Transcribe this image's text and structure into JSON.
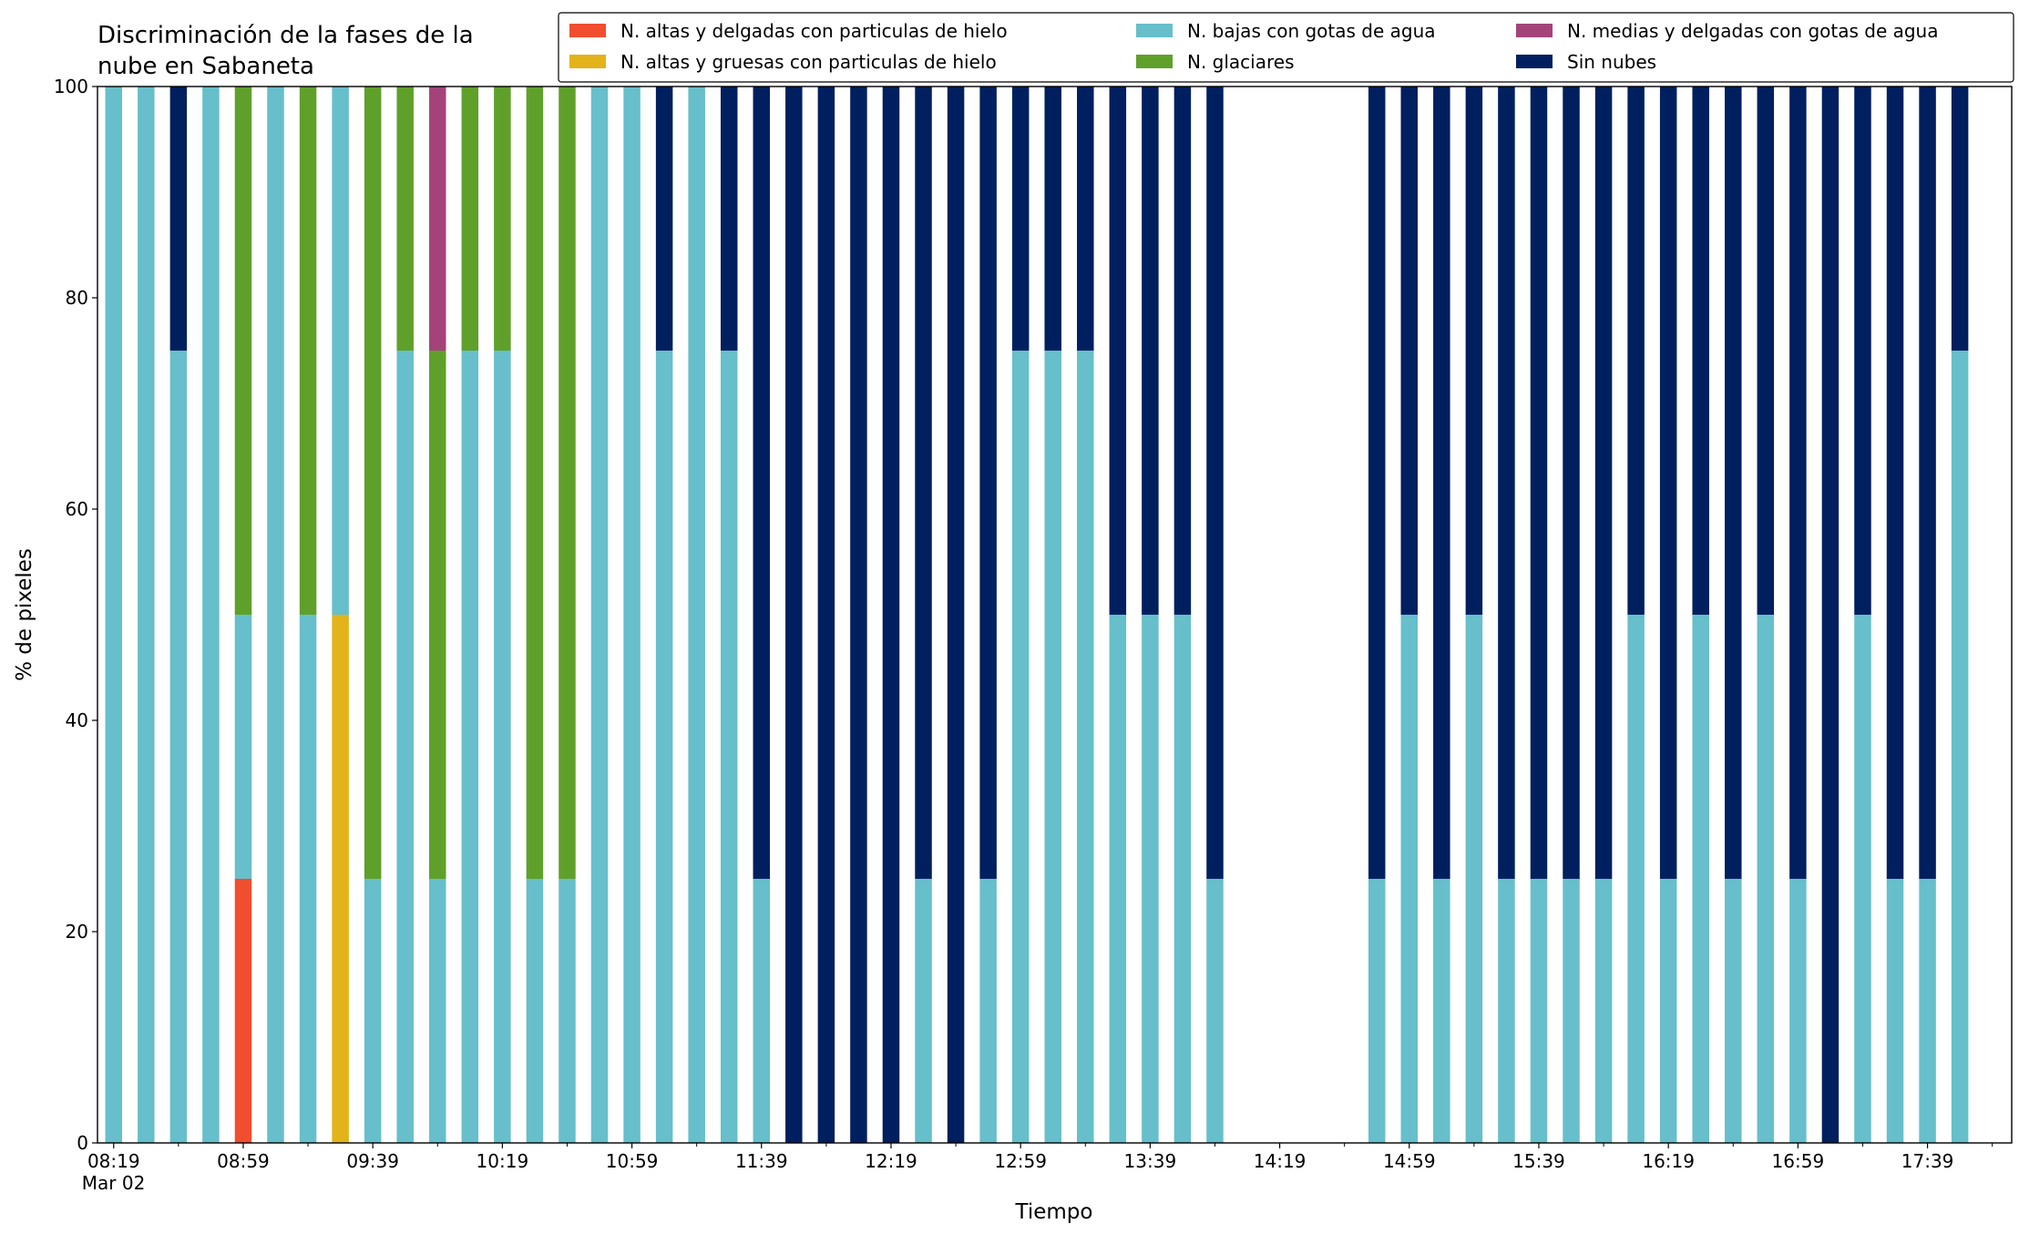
{
  "chart_data": {
    "type": "stacked_bar",
    "title": "Discriminación de la fases de la\nnube en Sabaneta",
    "x_label": "Tiempo",
    "y_label": "% de pixeles",
    "x": [
      "08:19",
      "08:29",
      "08:39",
      "08:49",
      "08:59",
      "09:09",
      "09:19",
      "09:29",
      "09:39",
      "09:49",
      "09:59",
      "10:09",
      "10:19",
      "10:29",
      "10:39",
      "10:49",
      "10:59",
      "11:09",
      "11:19",
      "11:29",
      "11:39",
      "11:49",
      "11:59",
      "12:09",
      "12:19",
      "12:29",
      "12:39",
      "12:49",
      "12:59",
      "13:09",
      "13:19",
      "13:29",
      "13:39",
      "13:49",
      "13:59",
      "14:49",
      "14:59",
      "15:09",
      "15:19",
      "15:29",
      "15:39",
      "15:49",
      "15:59",
      "16:09",
      "16:19",
      "16:29",
      "16:39",
      "16:49",
      "16:59",
      "17:09",
      "17:19",
      "17:29",
      "17:39",
      "17:49"
    ],
    "series": [
      {
        "name": "N. altas y delgadas con particulas de hielo",
        "color": "#f04e2e",
        "values": [
          0,
          0,
          0,
          0,
          25,
          0,
          0,
          0,
          0,
          0,
          0,
          0,
          0,
          0,
          0,
          0,
          0,
          0,
          0,
          0,
          0,
          0,
          0,
          0,
          0,
          0,
          0,
          0,
          0,
          0,
          0,
          0,
          0,
          0,
          0,
          0,
          0,
          0,
          0,
          0,
          0,
          0,
          0,
          0,
          0,
          0,
          0,
          0,
          0,
          0,
          0,
          0,
          0,
          0
        ]
      },
      {
        "name": "N. altas y gruesas con particulas de hielo",
        "color": "#e3b31a",
        "values": [
          0,
          0,
          0,
          0,
          0,
          0,
          0,
          50,
          0,
          0,
          0,
          0,
          0,
          0,
          0,
          0,
          0,
          0,
          0,
          0,
          0,
          0,
          0,
          0,
          0,
          0,
          0,
          0,
          0,
          0,
          0,
          0,
          0,
          0,
          0,
          0,
          0,
          0,
          0,
          0,
          0,
          0,
          0,
          0,
          0,
          0,
          0,
          0,
          0,
          0,
          0,
          0,
          0,
          0
        ]
      },
      {
        "name": "N. bajas con gotas de agua",
        "color": "#66bfca",
        "values": [
          100,
          100,
          75,
          100,
          25,
          100,
          50,
          50,
          25,
          75,
          25,
          75,
          75,
          25,
          25,
          100,
          100,
          75,
          100,
          75,
          25,
          0,
          0,
          0,
          0,
          25,
          0,
          25,
          75,
          75,
          75,
          50,
          50,
          50,
          25,
          25,
          50,
          25,
          50,
          25,
          25,
          25,
          25,
          50,
          25,
          50,
          25,
          50,
          25,
          0,
          50,
          25,
          25,
          75
        ]
      },
      {
        "name": "N. glaciares",
        "color": "#5fa02a",
        "values": [
          0,
          0,
          0,
          0,
          50,
          0,
          50,
          0,
          75,
          25,
          50,
          25,
          25,
          75,
          75,
          0,
          0,
          0,
          0,
          0,
          0,
          0,
          0,
          0,
          0,
          0,
          0,
          0,
          0,
          0,
          0,
          0,
          0,
          0,
          0,
          0,
          0,
          0,
          0,
          0,
          0,
          0,
          0,
          0,
          0,
          0,
          0,
          0,
          0,
          0,
          0,
          0,
          0,
          0
        ]
      },
      {
        "name": "N. medias y delgadas con gotas de agua",
        "color": "#a4437a",
        "values": [
          0,
          0,
          0,
          0,
          0,
          0,
          0,
          0,
          0,
          0,
          25,
          0,
          0,
          0,
          0,
          0,
          0,
          0,
          0,
          0,
          0,
          0,
          0,
          0,
          0,
          0,
          0,
          0,
          0,
          0,
          0,
          0,
          0,
          0,
          0,
          0,
          0,
          0,
          0,
          0,
          0,
          0,
          0,
          0,
          0,
          0,
          0,
          0,
          0,
          0,
          0,
          0,
          0,
          0
        ]
      },
      {
        "name": "Sin nubes",
        "color": "#001f5f",
        "values": [
          0,
          0,
          25,
          0,
          0,
          0,
          0,
          0,
          0,
          0,
          0,
          0,
          0,
          0,
          0,
          0,
          0,
          25,
          0,
          25,
          75,
          100,
          100,
          100,
          100,
          75,
          100,
          75,
          25,
          25,
          25,
          50,
          50,
          50,
          75,
          75,
          50,
          75,
          50,
          75,
          75,
          75,
          75,
          50,
          75,
          50,
          75,
          50,
          75,
          100,
          50,
          75,
          75,
          25
        ]
      }
    ],
    "xlim": [
      "08:14",
      "18:05"
    ],
    "xticks": [
      {
        "value": "08:19",
        "label": "08:19\nMar 02"
      },
      "08:59",
      "09:39",
      "10:19",
      "10:59",
      "11:39",
      "12:19",
      "12:59",
      "13:39",
      "14:19",
      "14:59",
      "15:39",
      "16:19",
      "16:59",
      "17:39"
    ],
    "xticks_minor": [
      "08:39",
      "09:19",
      "09:59",
      "10:39",
      "11:19",
      "11:59",
      "12:39",
      "13:19",
      "13:59",
      "14:39",
      "15:19",
      "15:59",
      "16:39",
      "17:19",
      "17:59"
    ],
    "ylim": [
      0,
      100
    ],
    "yticks": [
      0,
      20,
      40,
      60,
      80,
      100
    ],
    "legend": "top-right"
  }
}
